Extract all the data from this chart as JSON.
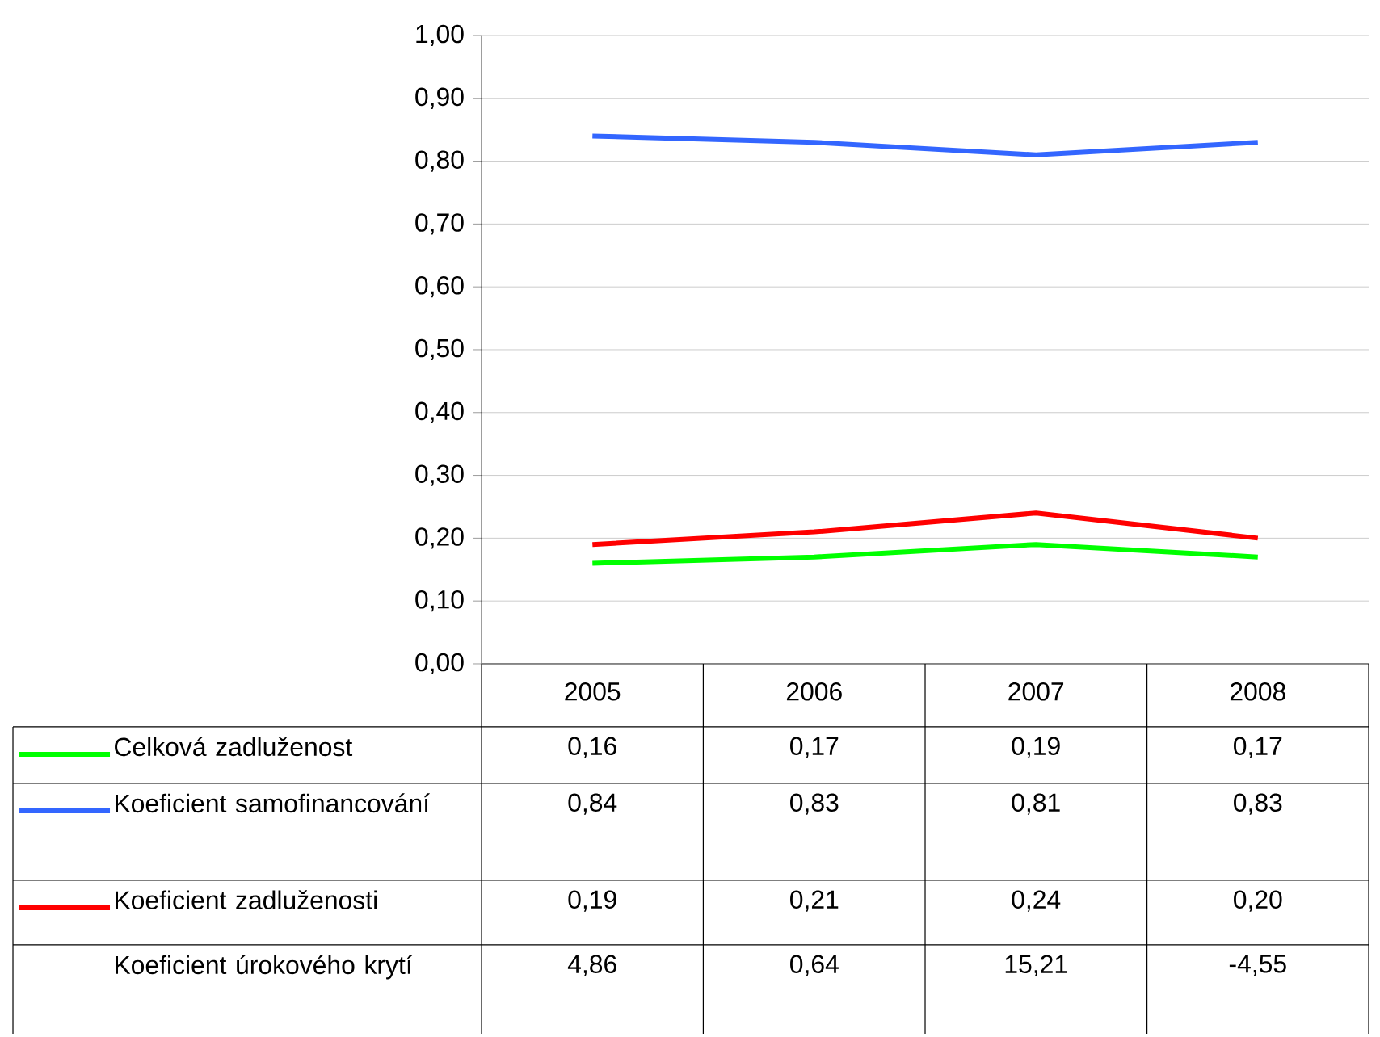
{
  "chart_data": {
    "type": "line",
    "categories": [
      "2005",
      "2006",
      "2007",
      "2008"
    ],
    "series": [
      {
        "name": "Celková zadluženost",
        "color": "#00ff00",
        "values": [
          0.16,
          0.17,
          0.19,
          0.17
        ],
        "value_labels": [
          "0,16",
          "0,17",
          "0,19",
          "0,17"
        ]
      },
      {
        "name": "Koeficient samofinancování",
        "color": "#3366ff",
        "values": [
          0.84,
          0.83,
          0.81,
          0.83
        ],
        "value_labels": [
          "0,84",
          "0,83",
          "0,81",
          "0,83"
        ]
      },
      {
        "name": "Koeficient zadluženosti",
        "color": "#ff0000",
        "values": [
          0.19,
          0.21,
          0.24,
          0.2
        ],
        "value_labels": [
          "0,19",
          "0,21",
          "0,24",
          "0,20"
        ]
      },
      {
        "name": "Koeficient úrokového krytí",
        "values": [
          null,
          null,
          null,
          null
        ],
        "value_labels": [
          "4,86",
          "0,64",
          "15,21",
          "-4,55"
        ]
      }
    ],
    "ylim": [
      0,
      1
    ],
    "yticks": [
      {
        "value": 0,
        "label": "0,00"
      },
      {
        "value": 0.1,
        "label": "0,10"
      },
      {
        "value": 0.2,
        "label": "0,20"
      },
      {
        "value": 0.3,
        "label": "0,30"
      },
      {
        "value": 0.4,
        "label": "0,40"
      },
      {
        "value": 0.5,
        "label": "0,50"
      },
      {
        "value": 0.6,
        "label": "0,60"
      },
      {
        "value": 0.7,
        "label": "0,70"
      },
      {
        "value": 0.8,
        "label": "0,80"
      },
      {
        "value": 0.9,
        "label": "0,90"
      },
      {
        "value": 1.0,
        "label": "1,00"
      }
    ],
    "grid": "y",
    "legend": "bottom",
    "marker": "none",
    "line_style": "solid"
  }
}
